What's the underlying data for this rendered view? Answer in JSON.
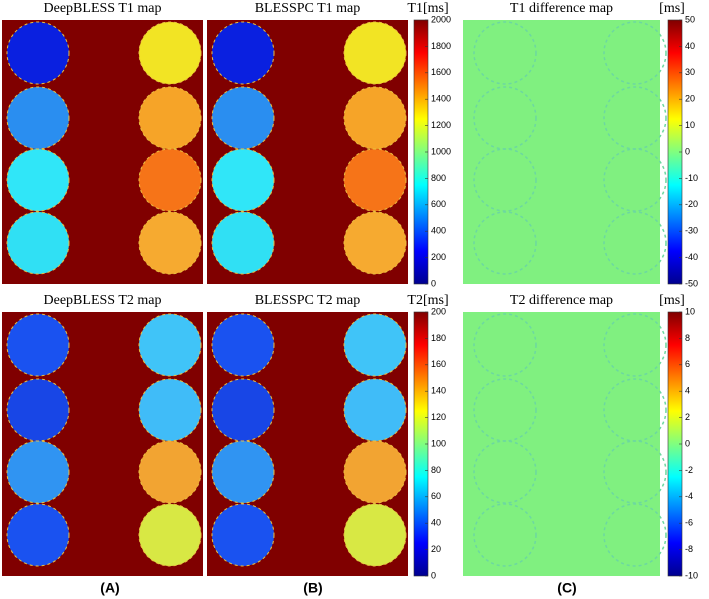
{
  "figure": {
    "rows": [
      {
        "panels": [
          {
            "title": "DeepBLESS T1 map"
          },
          {
            "title": "BLESSPC T1 map"
          },
          {
            "title": "T1 difference map"
          }
        ],
        "colorbars": [
          {
            "label": "T1[ms]",
            "lim": [
              0,
              2000
            ],
            "ticks": [
              0,
              200,
              400,
              600,
              800,
              1000,
              1200,
              1400,
              1600,
              1800,
              2000
            ]
          },
          {
            "label": "[ms]",
            "lim": [
              -50,
              50
            ],
            "ticks": [
              -50,
              -40,
              -30,
              -20,
              -10,
              0,
              10,
              20,
              30,
              40,
              50
            ]
          }
        ]
      },
      {
        "panels": [
          {
            "title": "DeepBLESS T2 map"
          },
          {
            "title": "BLESSPC T2 map"
          },
          {
            "title": "T2 difference map"
          }
        ],
        "colorbars": [
          {
            "label": "T2[ms]",
            "lim": [
              0,
              200
            ],
            "ticks": [
              0,
              20,
              40,
              60,
              80,
              100,
              120,
              140,
              160,
              180,
              200
            ]
          },
          {
            "label": "[ms]",
            "lim": [
              -10,
              10
            ],
            "ticks": [
              -10,
              -8,
              -6,
              -4,
              -2,
              0,
              2,
              4,
              6,
              8,
              10
            ]
          }
        ]
      }
    ],
    "letters": [
      "(A)",
      "(B)",
      "(C)"
    ]
  }
}
